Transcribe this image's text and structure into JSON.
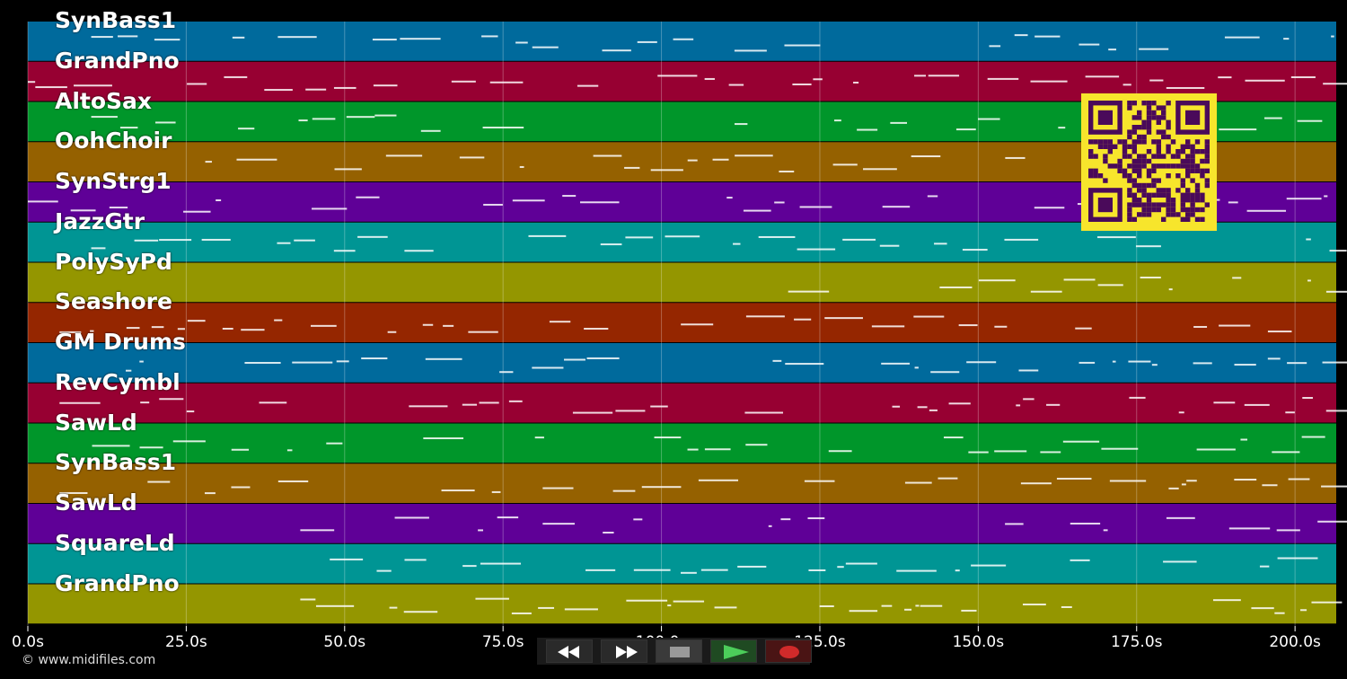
{
  "tracks": [
    {
      "name": "SynBass1",
      "color": "#006a9c"
    },
    {
      "name": "GrandPno",
      "color": "#970032"
    },
    {
      "name": "AltoSax",
      "color": "#00962a"
    },
    {
      "name": "OohChoir",
      "color": "#956100"
    },
    {
      "name": "SynStrg1",
      "color": "#5f0097"
    },
    {
      "name": "JazzGtr",
      "color": "#009594"
    },
    {
      "name": "PolySyPd",
      "color": "#949600"
    },
    {
      "name": "Seashore",
      "color": "#952600"
    },
    {
      "name": "GM Drums",
      "color": "#006a9c"
    },
    {
      "name": "RevCymbl",
      "color": "#970032"
    },
    {
      "name": "SawLd",
      "color": "#00962a"
    },
    {
      "name": "SynBass1",
      "color": "#956100"
    },
    {
      "name": "SawLd",
      "color": "#5f0097"
    },
    {
      "name": "SquareLd",
      "color": "#009594"
    },
    {
      "name": "GrandPno",
      "color": "#949600"
    }
  ],
  "timeline": {
    "ticks": [
      "0.0s",
      "25.0s",
      "50.0s",
      "75.0s",
      "100.0s",
      "125.0s",
      "150.0s",
      "175.0s",
      "200.0s"
    ],
    "tick_seconds": [
      0,
      25,
      50,
      75,
      100,
      125,
      150,
      175,
      200
    ],
    "max_seconds": 206.5
  },
  "transport": {
    "rewind": "rewind-icon",
    "fast_forward": "fast-forward-icon",
    "stop": "stop-icon",
    "play": "play-icon",
    "record": "record-icon"
  },
  "copyright": "© www.midifiles.com",
  "colors": {
    "play_accent": "#3cb44a",
    "record_accent": "#d02a2a",
    "qr_bg": "#f7e52c",
    "qr_fg": "#4a0a5a"
  }
}
